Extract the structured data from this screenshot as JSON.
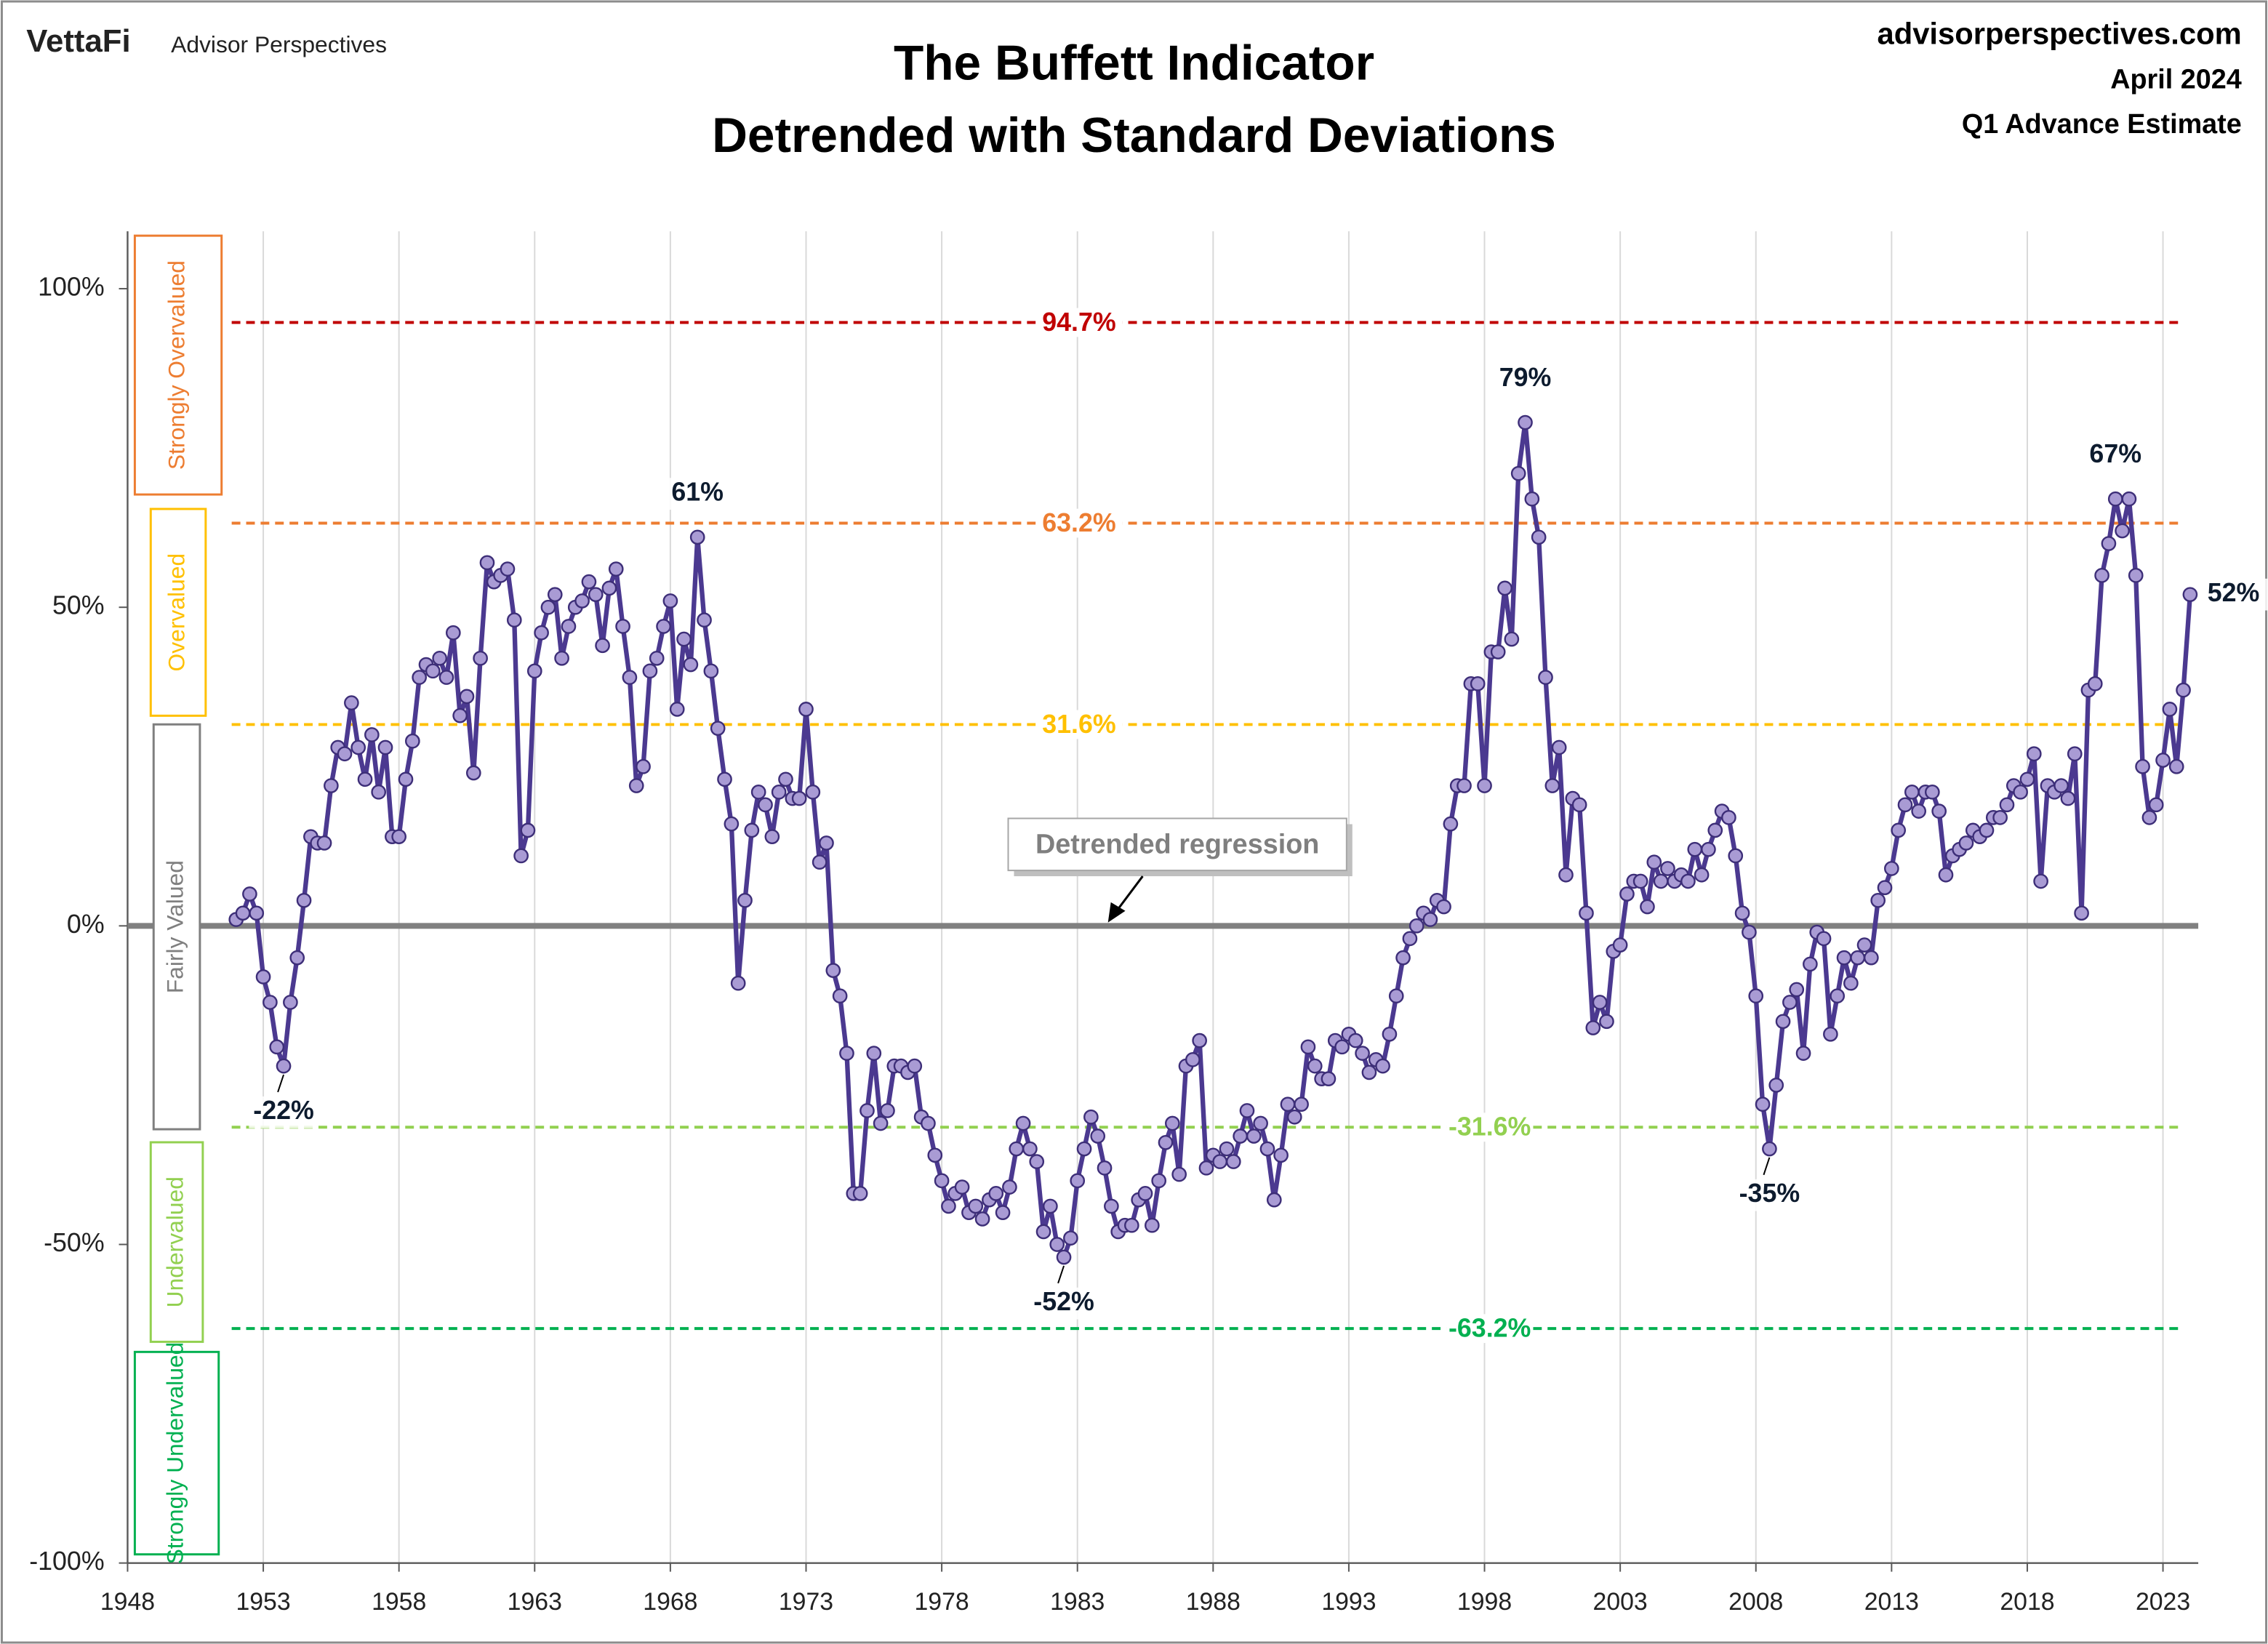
{
  "header": {
    "brand": "VettaFi",
    "brand_sub": "Advisor Perspectives",
    "site": "advisorperspectives.com",
    "date": "April 2024",
    "note": "Q1 Advance Estimate"
  },
  "chart_data": {
    "type": "line",
    "title": [
      "The Buffett Indicator",
      "Detrended with Standard Deviations"
    ],
    "series": [
      {
        "color": "#4b3990",
        "marker_color": "#a99bd4",
        "x": [
          1952,
          1952.25,
          1952.5,
          1952.75,
          1953,
          1953.25,
          1953.5,
          1953.75,
          1954,
          1954.25,
          1954.5,
          1954.75,
          1955,
          1955.25,
          1955.5,
          1955.75,
          1956,
          1956.25,
          1956.5,
          1956.75,
          1957,
          1957.25,
          1957.5,
          1957.75,
          1958,
          1958.25,
          1958.5,
          1958.75,
          1959,
          1959.25,
          1959.5,
          1959.75,
          1960,
          1960.25,
          1960.5,
          1960.75,
          1961,
          1961.25,
          1961.5,
          1961.75,
          1962,
          1962.25,
          1962.5,
          1962.75,
          1963,
          1963.25,
          1963.5,
          1963.75,
          1964,
          1964.25,
          1964.5,
          1964.75,
          1965,
          1965.25,
          1965.5,
          1965.75,
          1966,
          1966.25,
          1966.5,
          1966.75,
          1967,
          1967.25,
          1967.5,
          1967.75,
          1968,
          1968.25,
          1968.5,
          1968.75,
          1969,
          1969.25,
          1969.5,
          1969.75,
          1970,
          1970.25,
          1970.5,
          1970.75,
          1971,
          1971.25,
          1971.5,
          1971.75,
          1972,
          1972.25,
          1972.5,
          1972.75,
          1973,
          1973.25,
          1973.5,
          1973.75,
          1974,
          1974.25,
          1974.5,
          1974.75,
          1975,
          1975.25,
          1975.5,
          1975.75,
          1976,
          1976.25,
          1976.5,
          1976.75,
          1977,
          1977.25,
          1977.5,
          1977.75,
          1978,
          1978.25,
          1978.5,
          1978.75,
          1979,
          1979.25,
          1979.5,
          1979.75,
          1980,
          1980.25,
          1980.5,
          1980.75,
          1981,
          1981.25,
          1981.5,
          1981.75,
          1982,
          1982.25,
          1982.5,
          1982.75,
          1983,
          1983.25,
          1983.5,
          1983.75,
          1984,
          1984.25,
          1984.5,
          1984.75,
          1985,
          1985.25,
          1985.5,
          1985.75,
          1986,
          1986.25,
          1986.5,
          1986.75,
          1987,
          1987.25,
          1987.5,
          1987.75,
          1988,
          1988.25,
          1988.5,
          1988.75,
          1989,
          1989.25,
          1989.5,
          1989.75,
          1990,
          1990.25,
          1990.5,
          1990.75,
          1991,
          1991.25,
          1991.5,
          1991.75,
          1992,
          1992.25,
          1992.5,
          1992.75,
          1993,
          1993.25,
          1993.5,
          1993.75,
          1994,
          1994.25,
          1994.5,
          1994.75,
          1995,
          1995.25,
          1995.5,
          1995.75,
          1996,
          1996.25,
          1996.5,
          1996.75,
          1997,
          1997.25,
          1997.5,
          1997.75,
          1998,
          1998.25,
          1998.5,
          1998.75,
          1999,
          1999.25,
          1999.5,
          1999.75,
          2000,
          2000.25,
          2000.5,
          2000.75,
          2001,
          2001.25,
          2001.5,
          2001.75,
          2002,
          2002.25,
          2002.5,
          2002.75,
          2003,
          2003.25,
          2003.5,
          2003.75,
          2004,
          2004.25,
          2004.5,
          2004.75,
          2005,
          2005.25,
          2005.5,
          2005.75,
          2006,
          2006.25,
          2006.5,
          2006.75,
          2007,
          2007.25,
          2007.5,
          2007.75,
          2008,
          2008.25,
          2008.5,
          2008.75,
          2009,
          2009.25,
          2009.5,
          2009.75,
          2010,
          2010.25,
          2010.5,
          2010.75,
          2011,
          2011.25,
          2011.5,
          2011.75,
          2012,
          2012.25,
          2012.5,
          2012.75,
          2013,
          2013.25,
          2013.5,
          2013.75,
          2014,
          2014.25,
          2014.5,
          2014.75,
          2015,
          2015.25,
          2015.5,
          2015.75,
          2016,
          2016.25,
          2016.5,
          2016.75,
          2017,
          2017.25,
          2017.5,
          2017.75,
          2018,
          2018.25,
          2018.5,
          2018.75,
          2019,
          2019.25,
          2019.5,
          2019.75,
          2020,
          2020.25,
          2020.5,
          2020.75,
          2021,
          2021.25,
          2021.5,
          2021.75,
          2022,
          2022.25,
          2022.5,
          2022.75,
          2023,
          2023.25,
          2023.5,
          2023.75,
          2024
        ],
        "values": [
          1,
          2,
          5,
          2,
          -8,
          -12,
          -19,
          -22,
          -12,
          -5,
          4,
          14,
          13,
          13,
          22,
          28,
          27,
          35,
          28,
          23,
          30,
          21,
          28,
          14,
          14,
          23,
          29,
          39,
          41,
          40,
          42,
          39,
          46,
          33,
          36,
          24,
          42,
          57,
          54,
          55,
          56,
          48,
          11,
          15,
          40,
          46,
          50,
          52,
          42,
          47,
          50,
          51,
          54,
          52,
          44,
          53,
          56,
          47,
          39,
          22,
          25,
          40,
          42,
          47,
          51,
          34,
          45,
          41,
          61,
          48,
          40,
          31,
          23,
          16,
          -9,
          4,
          15,
          21,
          19,
          14,
          21,
          23,
          20,
          20,
          34,
          21,
          10,
          13,
          -7,
          -11,
          -20,
          -42,
          -42,
          -29,
          -20,
          -31,
          -29,
          -22,
          -22,
          -23,
          -22,
          -30,
          -31,
          -36,
          -40,
          -44,
          -42,
          -41,
          -45,
          -44,
          -46,
          -43,
          -42,
          -45,
          -41,
          -35,
          -31,
          -35,
          -37,
          -48,
          -44,
          -50,
          -52,
          -49,
          -40,
          -35,
          -30,
          -33,
          -38,
          -44,
          -48,
          -47,
          -47,
          -43,
          -42,
          -47,
          -40,
          -34,
          -31,
          -39,
          -22,
          -21,
          -18,
          -38,
          -36,
          -37,
          -35,
          -37,
          -33,
          -29,
          -33,
          -31,
          -35,
          -43,
          -36,
          -28,
          -30,
          -28,
          -19,
          -22,
          -24,
          -24,
          -18,
          -19,
          -17,
          -18,
          -20,
          -23,
          -21,
          -22,
          -17,
          -11,
          -5,
          -2,
          0,
          2,
          1,
          4,
          3,
          16,
          22,
          22,
          38,
          38,
          22,
          43,
          43,
          53,
          45,
          71,
          79,
          67,
          61,
          39,
          22,
          28,
          8,
          20,
          19,
          2,
          -16,
          -12,
          -15,
          -4,
          -3,
          5,
          7,
          7,
          3,
          10,
          7,
          9,
          7,
          8,
          7,
          12,
          8,
          12,
          15,
          18,
          17,
          11,
          2,
          -1,
          -11,
          -28,
          -35,
          -25,
          -15,
          -12,
          -10,
          -20,
          -6,
          -1,
          -2,
          -17,
          -11,
          -5,
          -9,
          -5,
          -3,
          -5,
          4,
          6,
          9,
          15,
          19,
          21,
          18,
          21,
          21,
          18,
          8,
          11,
          12,
          13,
          15,
          14,
          15,
          17,
          17,
          19,
          22,
          21,
          23,
          27,
          7,
          22,
          21,
          22,
          20,
          27,
          2,
          37,
          38,
          55,
          60,
          67,
          62,
          67,
          55,
          25,
          17,
          19,
          26,
          34,
          25,
          37,
          52
        ]
      }
    ],
    "annotations": [
      {
        "x": 1953.75,
        "y": -22,
        "label": "-22%"
      },
      {
        "x": 1969,
        "y": 61,
        "label": "61%"
      },
      {
        "x": 1982.5,
        "y": -52,
        "label": "-52%"
      },
      {
        "x": 1999.5,
        "y": 79,
        "label": "79%"
      },
      {
        "x": 2008.5,
        "y": -35,
        "label": "-35%"
      },
      {
        "x": 2021.25,
        "y": 67,
        "label": "67%"
      },
      {
        "x": 2024,
        "y": 52,
        "label": "52%"
      }
    ],
    "reference_lines": [
      {
        "value": 94.7,
        "label": "94.7%",
        "color": "#c00000"
      },
      {
        "value": 63.2,
        "label": "63.2%",
        "color": "#ed7d31"
      },
      {
        "value": 31.6,
        "label": "31.6%",
        "color": "#ffc000"
      },
      {
        "value": -31.6,
        "label": "-31.6%",
        "color": "#92d050"
      },
      {
        "value": -63.2,
        "label": "-63.2%",
        "color": "#00b050"
      }
    ],
    "regression_label": "Detrended regression",
    "zones": [
      {
        "label": "Strongly Overvalued",
        "color": "#ed7d31"
      },
      {
        "label": "Overvalued",
        "color": "#ffc000"
      },
      {
        "label": "Fairly Valued",
        "color": "#7f7f7f"
      },
      {
        "label": "Undervalued",
        "color": "#92d050"
      },
      {
        "label": "Strongly Undervalued",
        "color": "#00b050"
      }
    ],
    "xlim": [
      1948,
      2024.3
    ],
    "xticks": [
      1948,
      1953,
      1958,
      1963,
      1968,
      1973,
      1978,
      1983,
      1988,
      1993,
      1998,
      2003,
      2008,
      2013,
      2018,
      2023
    ],
    "ylim": [
      -100,
      109
    ],
    "yticks": [
      {
        "value": -100,
        "label": "-100%"
      },
      {
        "value": -50,
        "label": "-50%"
      },
      {
        "value": 0,
        "label": "0%"
      },
      {
        "value": 50,
        "label": "50%"
      },
      {
        "value": 100,
        "label": "100%"
      }
    ],
    "grid": true
  }
}
